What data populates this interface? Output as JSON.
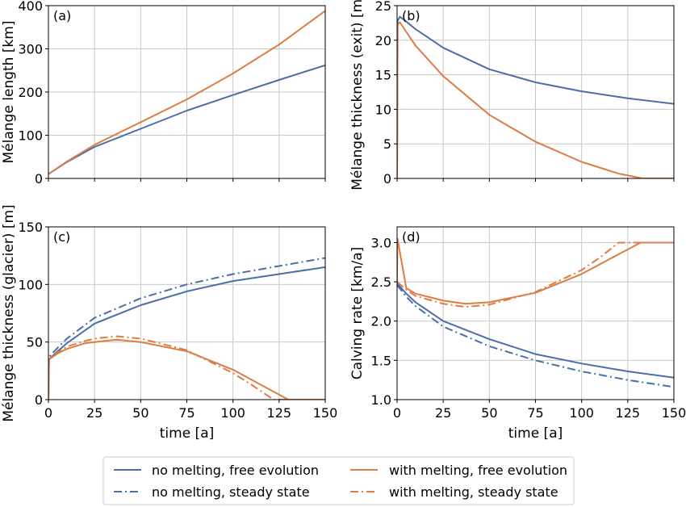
{
  "colors": {
    "no_melting": "#4a6fa8",
    "with_melting": "#db7d45",
    "grid": "#c8c8c8",
    "axis": "#000000"
  },
  "legend": {
    "placement": "bottom-center",
    "entries": [
      {
        "label": "no melting, free evolution",
        "color": "#4a6fa8",
        "style": "solid"
      },
      {
        "label": "with melting, free evolution",
        "color": "#db7d45",
        "style": "solid"
      },
      {
        "label": "no melting, steady state",
        "color": "#4a6fa8",
        "style": "dashdot"
      },
      {
        "label": "with melting, steady state",
        "color": "#db7d45",
        "style": "dashdot"
      }
    ]
  },
  "chart_data": [
    {
      "panel": "(a)",
      "type": "line",
      "xlabel": "",
      "ylabel": "Mélange length [km]",
      "xlim": [
        0,
        150
      ],
      "ylim": [
        0,
        400
      ],
      "xticks": [
        0,
        25,
        50,
        75,
        100,
        125,
        150
      ],
      "yticks": [
        0,
        100,
        200,
        300,
        400
      ],
      "show_xtick_labels": false,
      "grid": true,
      "series": [
        {
          "color": "#4a6fa8",
          "style": "solid",
          "x": [
            0,
            10,
            25,
            50,
            75,
            100,
            125,
            150
          ],
          "y": [
            10,
            38,
            73,
            115,
            157,
            193,
            228,
            262
          ]
        },
        {
          "color": "#db7d45",
          "style": "solid",
          "x": [
            0,
            10,
            25,
            50,
            75,
            100,
            125,
            150
          ],
          "y": [
            10,
            39,
            78,
            130,
            183,
            243,
            310,
            388
          ]
        }
      ]
    },
    {
      "panel": "(b)",
      "type": "line",
      "xlabel": "",
      "ylabel": "Mélange thickness (exit) [m]",
      "xlim": [
        0,
        150
      ],
      "ylim": [
        0,
        25
      ],
      "xticks": [
        0,
        25,
        50,
        75,
        100,
        125,
        150
      ],
      "yticks": [
        0,
        5,
        10,
        15,
        20,
        25
      ],
      "show_xtick_labels": false,
      "grid": true,
      "series": [
        {
          "color": "#4a6fa8",
          "style": "solid",
          "x": [
            0,
            0.3,
            1.5,
            5,
            10,
            25,
            50,
            75,
            100,
            125,
            150
          ],
          "y": [
            0,
            22.8,
            23.4,
            22.7,
            21.6,
            18.9,
            15.8,
            13.9,
            12.6,
            11.6,
            10.8
          ]
        },
        {
          "color": "#db7d45",
          "style": "solid",
          "x": [
            0,
            0.3,
            1.5,
            5,
            10,
            25,
            50,
            75,
            100,
            120,
            133,
            150
          ],
          "y": [
            0,
            22.2,
            22.6,
            21.2,
            19.2,
            14.8,
            9.2,
            5.3,
            2.4,
            0.7,
            0,
            0
          ]
        }
      ]
    },
    {
      "panel": "(c)",
      "type": "line",
      "xlabel": "time [a]",
      "ylabel": "Mélange thickness (glacier) [m]",
      "xlim": [
        0,
        150
      ],
      "ylim": [
        0,
        150
      ],
      "xticks": [
        0,
        25,
        50,
        75,
        100,
        125,
        150
      ],
      "yticks": [
        0,
        50,
        100,
        150
      ],
      "grid": true,
      "series": [
        {
          "color": "#4a6fa8",
          "style": "solid",
          "x": [
            0,
            0.3,
            5,
            10,
            25,
            50,
            75,
            100,
            125,
            150
          ],
          "y": [
            0,
            35,
            42,
            49,
            66,
            82,
            94,
            103,
            109,
            115
          ]
        },
        {
          "color": "#4a6fa8",
          "style": "dashdot",
          "x": [
            0,
            0.3,
            5,
            10,
            25,
            50,
            75,
            100,
            125,
            150
          ],
          "y": [
            0,
            37,
            45,
            53,
            71,
            88,
            100,
            109,
            116,
            123
          ]
        },
        {
          "color": "#db7d45",
          "style": "solid",
          "x": [
            0,
            0.3,
            5,
            10,
            20,
            25,
            37,
            50,
            75,
            100,
            115,
            130,
            150
          ],
          "y": [
            0,
            35,
            40,
            44,
            49,
            50,
            52,
            50,
            42,
            26,
            13,
            0,
            0
          ]
        },
        {
          "color": "#db7d45",
          "style": "dashdot",
          "x": [
            0,
            0.3,
            5,
            10,
            20,
            25,
            37,
            50,
            75,
            100,
            110,
            122,
            150
          ],
          "y": [
            0,
            36,
            41,
            46,
            51,
            53,
            55,
            53,
            43,
            23,
            13,
            0,
            0
          ]
        }
      ]
    },
    {
      "panel": "(d)",
      "type": "line",
      "xlabel": "time [a]",
      "ylabel": "Calving rate [km/a]",
      "xlim": [
        0,
        150
      ],
      "ylim": [
        1.0,
        3.2
      ],
      "xticks": [
        0,
        25,
        50,
        75,
        100,
        125,
        150
      ],
      "yticks": [
        1.0,
        1.5,
        2.0,
        2.5,
        3.0
      ],
      "ytick_labels": [
        "1.0",
        "1.5",
        "2.0",
        "2.5",
        "3.0"
      ],
      "grid": true,
      "series": [
        {
          "color": "#4a6fa8",
          "style": "solid",
          "x": [
            0,
            5,
            10,
            25,
            50,
            75,
            100,
            125,
            150
          ],
          "y": [
            2.48,
            2.35,
            2.24,
            2.0,
            1.77,
            1.58,
            1.46,
            1.36,
            1.28
          ]
        },
        {
          "color": "#4a6fa8",
          "style": "dashdot",
          "x": [
            0,
            5,
            10,
            25,
            50,
            75,
            100,
            125,
            150
          ],
          "y": [
            2.46,
            2.31,
            2.19,
            1.93,
            1.68,
            1.5,
            1.36,
            1.25,
            1.16
          ]
        },
        {
          "color": "#db7d45",
          "style": "solid",
          "x": [
            0,
            0.2,
            5,
            10,
            25,
            37,
            50,
            75,
            100,
            120,
            132,
            150
          ],
          "y": [
            2.5,
            3.05,
            2.42,
            2.35,
            2.26,
            2.22,
            2.24,
            2.36,
            2.6,
            2.85,
            3.0,
            3.0
          ]
        },
        {
          "color": "#db7d45",
          "style": "dashdot",
          "x": [
            0,
            5,
            10,
            25,
            37,
            50,
            75,
            100,
            110,
            120,
            150
          ],
          "y": [
            2.5,
            2.4,
            2.32,
            2.22,
            2.18,
            2.21,
            2.37,
            2.65,
            2.81,
            3.0,
            3.0
          ]
        }
      ]
    }
  ]
}
